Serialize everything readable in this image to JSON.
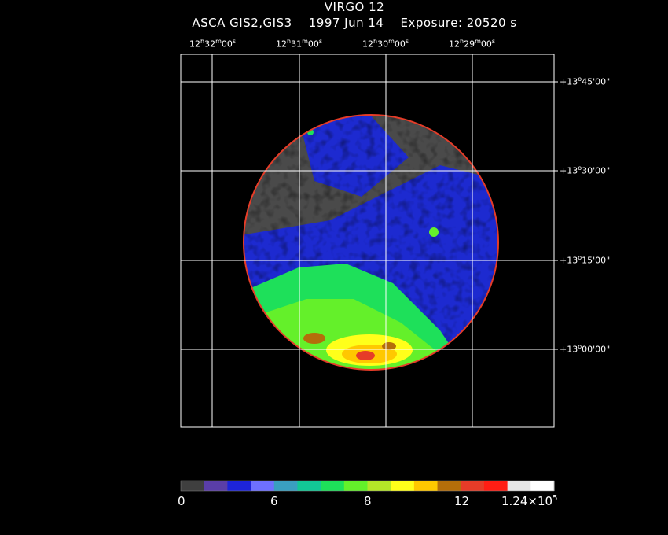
{
  "header": {
    "title": "VIRGO 12",
    "instrument": "ASCA GIS2,GIS3",
    "date": "1997 Jun 14",
    "exposure": "Exposure: 20520 s"
  },
  "ra_axis": {
    "labels": [
      {
        "h": "12",
        "m": "32",
        "s": "00"
      },
      {
        "h": "12",
        "m": "31",
        "s": "00"
      },
      {
        "h": "12",
        "m": "30",
        "s": "00"
      },
      {
        "h": "12",
        "m": "29",
        "s": "00"
      }
    ]
  },
  "dec_axis": {
    "labels": [
      {
        "sign": "+",
        "d": "13",
        "m": "45",
        "s": "00"
      },
      {
        "sign": "+",
        "d": "13",
        "m": "30",
        "s": "00"
      },
      {
        "sign": "+",
        "d": "13",
        "m": "15",
        "s": "00"
      },
      {
        "sign": "+",
        "d": "13",
        "m": "00",
        "s": "00"
      }
    ]
  },
  "colorbar": {
    "colors": [
      "#3f3f3f",
      "#5a3ea8",
      "#1d24d8",
      "#6e70ff",
      "#3a9fc0",
      "#12c896",
      "#1ee05a",
      "#64f02a",
      "#b4e628",
      "#ffff1a",
      "#ffc800",
      "#b46e0a",
      "#e63c28",
      "#ff1e14",
      "#e6e6e6",
      "#ffffff"
    ],
    "ticks": [
      "0",
      "6",
      "8",
      "12"
    ],
    "max_label_mantissa": "1.24×10",
    "max_label_exp": "5"
  }
}
